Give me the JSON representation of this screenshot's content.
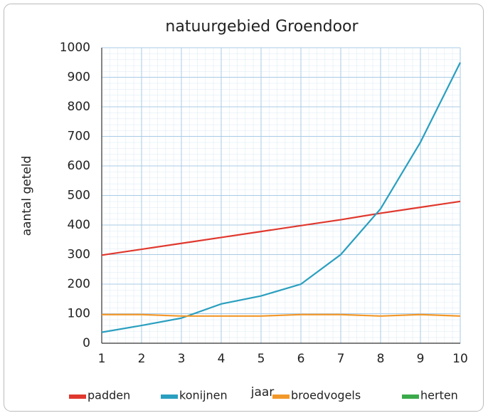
{
  "chart_data": {
    "type": "line",
    "title": "natuurgebied Groendoor",
    "x_label": "jaar",
    "y_label": "aantal geteld",
    "categories": [
      "1",
      "2",
      "3",
      "4",
      "5",
      "6",
      "7",
      "8",
      "9",
      "10"
    ],
    "series": [
      {
        "name": "padden",
        "color": "#e0382e",
        "values": [
          298,
          318,
          338,
          358,
          378,
          398,
          418,
          440,
          460,
          480
        ]
      },
      {
        "name": "konijnen",
        "color": "#2a9fbf",
        "values": [
          37,
          60,
          85,
          133,
          160,
          200,
          300,
          455,
          680,
          950
        ]
      },
      {
        "name": "broedvogels",
        "color": "#f2982a",
        "values": [
          97,
          97,
          92,
          92,
          92,
          97,
          97,
          92,
          97,
          92
        ]
      },
      {
        "name": "herten",
        "color": "#3aaa4a",
        "values": [
          null,
          null,
          null,
          null,
          null,
          null,
          null,
          null,
          null,
          null
        ]
      }
    ],
    "ylim": [
      0,
      1000
    ],
    "yticks": [
      0,
      100,
      200,
      300,
      400,
      500,
      600,
      700,
      800,
      900,
      1000
    ],
    "grid": true
  }
}
